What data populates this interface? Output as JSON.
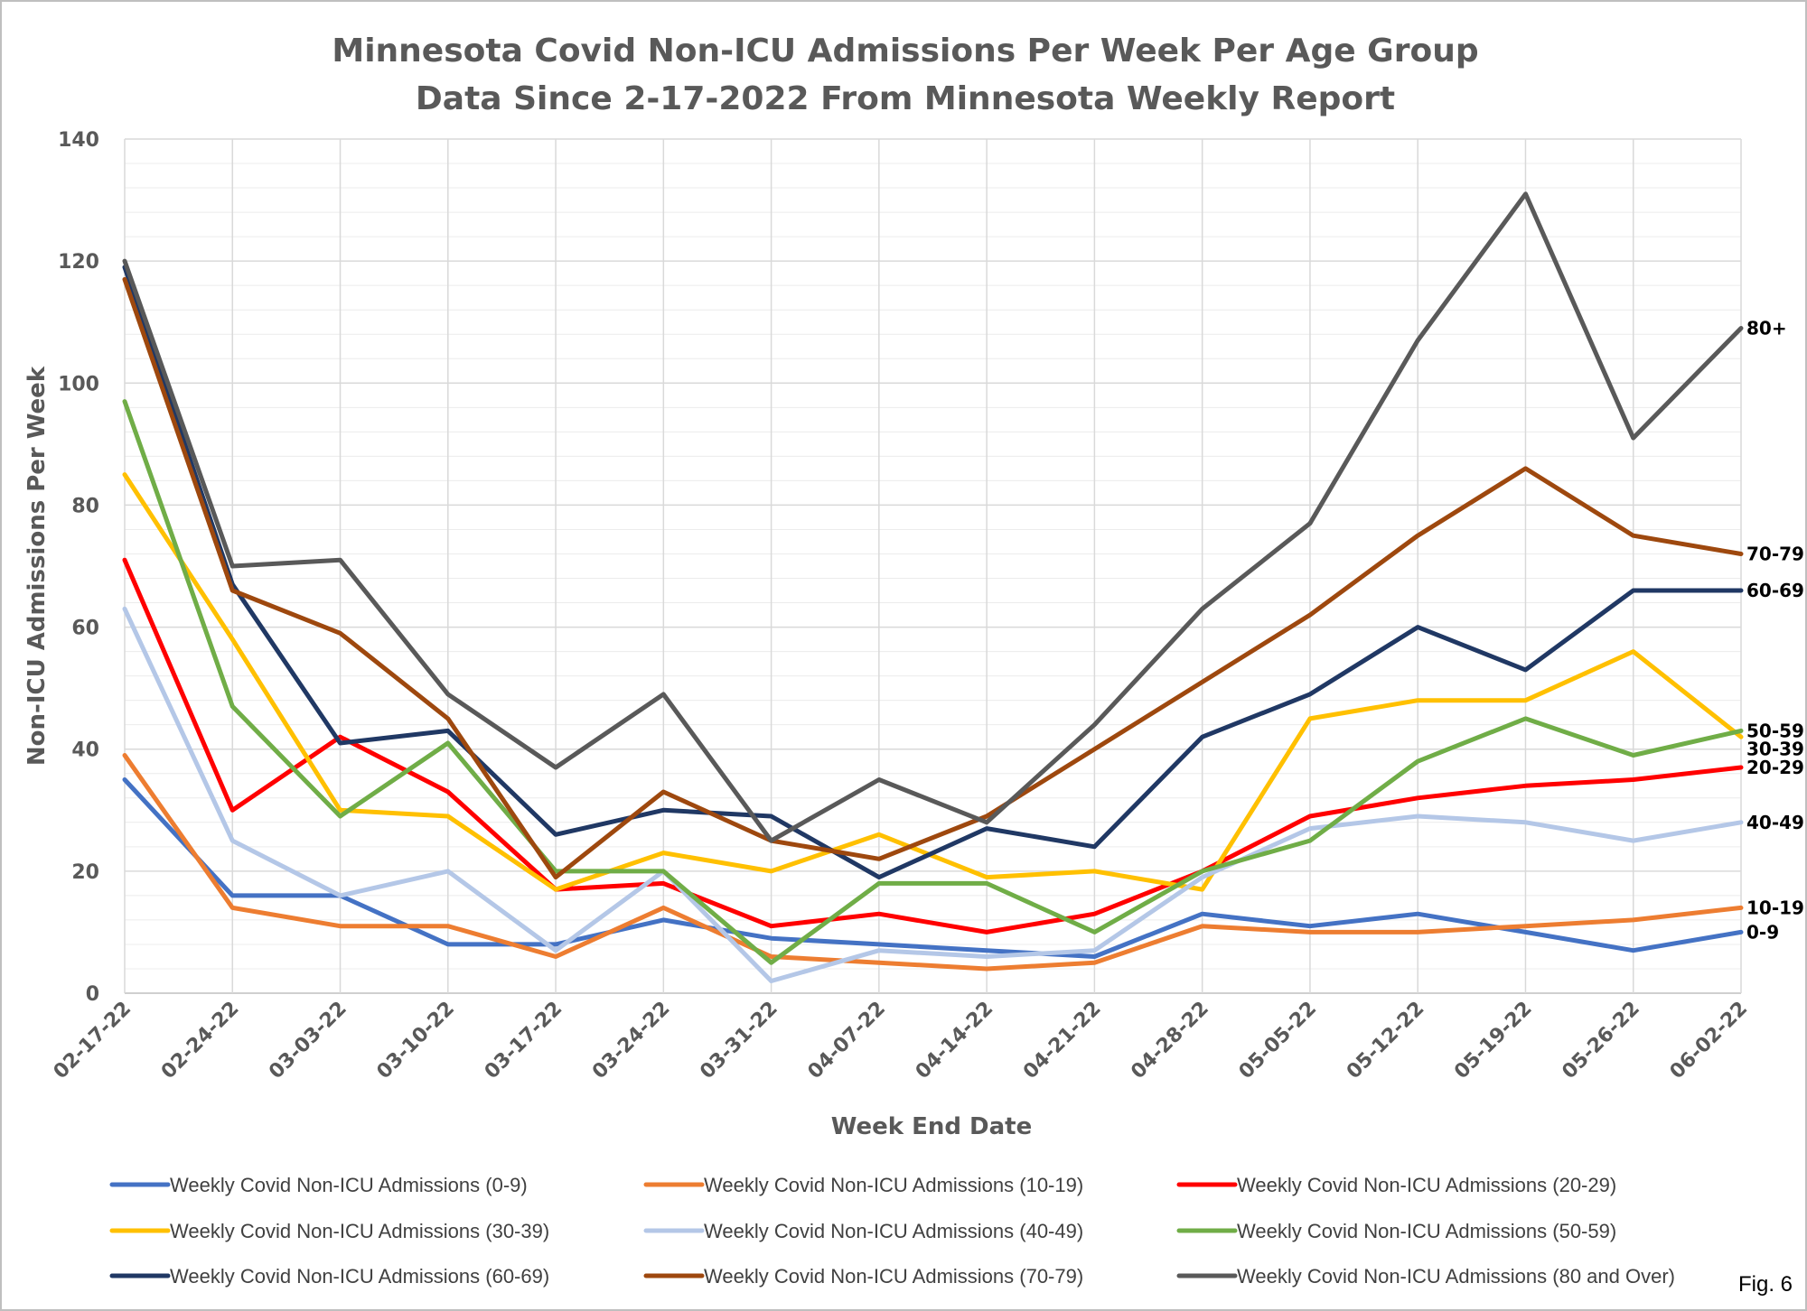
{
  "chart_data": {
    "type": "line",
    "title": [
      "Minnesota Covid Non-ICU Admissions Per Week Per Age Group",
      "Data Since 2-17-2022 From Minnesota Weekly Report"
    ],
    "xlabel": "Week End Date",
    "ylabel": "Non-ICU Admissions Per Week",
    "ylim": [
      0,
      140
    ],
    "yticks": [
      0,
      20,
      40,
      60,
      80,
      100,
      120,
      140
    ],
    "grid": true,
    "legend_position": "bottom",
    "categories": [
      "02-17-22",
      "02-24-22",
      "03-03-22",
      "03-10-22",
      "03-17-22",
      "03-24-22",
      "03-31-22",
      "04-07-22",
      "04-14-22",
      "04-21-22",
      "04-28-22",
      "05-05-22",
      "05-12-22",
      "05-19-22",
      "05-26-22",
      "06-02-22"
    ],
    "series": [
      {
        "name": "Weekly Covid Non-ICU Admissions (0-9)",
        "end_label": "0-9",
        "color": "#4472C4",
        "values": [
          35,
          16,
          16,
          8,
          8,
          12,
          9,
          8,
          7,
          6,
          13,
          11,
          13,
          10,
          7,
          10
        ]
      },
      {
        "name": "Weekly Covid Non-ICU Admissions (10-19)",
        "end_label": "10-19",
        "color": "#ED7D31",
        "values": [
          39,
          14,
          11,
          11,
          6,
          14,
          6,
          5,
          4,
          5,
          11,
          10,
          10,
          11,
          12,
          14
        ]
      },
      {
        "name": "Weekly Covid Non-ICU Admissions (20-29)",
        "end_label": "20-29",
        "color": "#FF0000",
        "values": [
          71,
          30,
          42,
          33,
          17,
          18,
          11,
          13,
          10,
          13,
          20,
          29,
          32,
          34,
          35,
          37
        ]
      },
      {
        "name": "Weekly Covid Non-ICU Admissions (30-39)",
        "end_label": "30-39",
        "color": "#FFC000",
        "values": [
          85,
          58,
          30,
          29,
          17,
          23,
          20,
          26,
          19,
          20,
          17,
          45,
          48,
          48,
          56,
          42
        ]
      },
      {
        "name": "Weekly Covid Non-ICU Admissions (40-49)",
        "end_label": "40-49",
        "color": "#B4C7E7",
        "values": [
          63,
          25,
          16,
          20,
          7,
          20,
          2,
          7,
          6,
          7,
          19,
          27,
          29,
          28,
          25,
          28
        ]
      },
      {
        "name": "Weekly Covid Non-ICU Admissions (50-59)",
        "end_label": "50-59",
        "color": "#70AD47",
        "values": [
          97,
          47,
          29,
          41,
          20,
          20,
          5,
          18,
          18,
          10,
          20,
          25,
          38,
          45,
          39,
          43
        ]
      },
      {
        "name": "Weekly Covid Non-ICU Admissions (60-69)",
        "end_label": "60-69",
        "color": "#203864",
        "values": [
          119,
          67,
          41,
          43,
          26,
          30,
          29,
          19,
          27,
          24,
          42,
          49,
          60,
          53,
          66,
          66
        ]
      },
      {
        "name": "Weekly Covid Non-ICU Admissions (70-79)",
        "end_label": "70-79",
        "color": "#9E480E",
        "values": [
          117,
          66,
          59,
          45,
          19,
          33,
          25,
          22,
          29,
          40,
          51,
          62,
          75,
          86,
          75,
          72
        ]
      },
      {
        "name": "Weekly Covid Non-ICU Admissions (80 and Over)",
        "end_label": "80+",
        "color": "#595959",
        "values": [
          120,
          70,
          71,
          49,
          37,
          49,
          25,
          35,
          28,
          44,
          63,
          77,
          107,
          131,
          91,
          109
        ]
      }
    ]
  },
  "footer": {
    "fig_label": "Fig. 6"
  }
}
